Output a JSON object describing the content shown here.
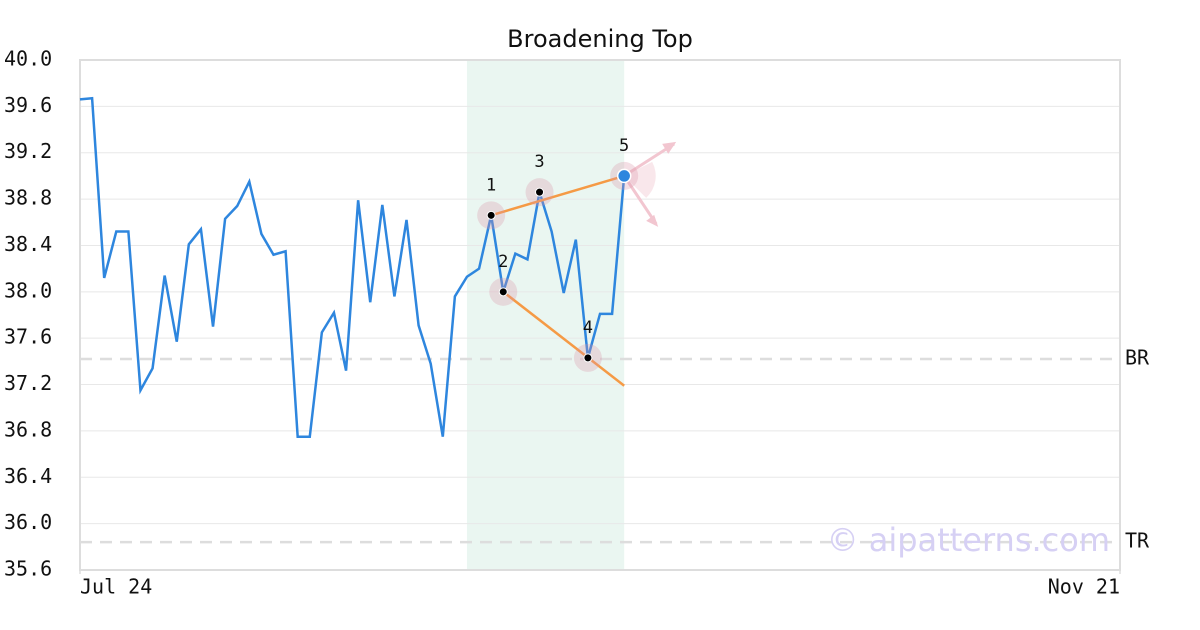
{
  "chart_data": {
    "type": "line",
    "title": "Broadening Top",
    "x": [
      0,
      1,
      2,
      3,
      4,
      5,
      6,
      7,
      8,
      9,
      10,
      11,
      12,
      13,
      14,
      15,
      16,
      17,
      18,
      19,
      20,
      21,
      22,
      23,
      24,
      25,
      26,
      27,
      28,
      29,
      30,
      31,
      32,
      33,
      34,
      35,
      36,
      37,
      38,
      39,
      40,
      41,
      42,
      43,
      44,
      45
    ],
    "series": [
      {
        "color": "#2e86de",
        "values": [
          39.66,
          39.67,
          38.12,
          38.52,
          38.52,
          37.15,
          37.34,
          38.14,
          37.57,
          38.41,
          38.54,
          37.7,
          38.63,
          38.74,
          38.95,
          38.5,
          38.32,
          38.35,
          36.75,
          36.75,
          37.65,
          37.82,
          37.32,
          38.79,
          37.91,
          38.75,
          37.96,
          38.62,
          37.71,
          37.38,
          36.75,
          37.96,
          38.13,
          38.2,
          38.66,
          38.0,
          38.33,
          38.28,
          38.86,
          38.52,
          37.99,
          38.45,
          37.43,
          37.81,
          37.81,
          39.0
        ]
      }
    ],
    "xlim": [
      0,
      86
    ],
    "xticks": [
      {
        "value": 0,
        "label": "Jul 24"
      },
      {
        "value": 86,
        "label": "Nov 21"
      }
    ],
    "ylim": [
      35.6,
      40.0
    ],
    "yticks": [
      35.6,
      {
        "value": 36.0,
        "label": "36.0"
      },
      36.4,
      36.8,
      37.2,
      37.6,
      {
        "value": 38.0,
        "label": "38.0"
      },
      38.4,
      38.8,
      39.2,
      39.6,
      {
        "value": 40.0,
        "label": "40.0"
      }
    ],
    "grid": true,
    "highlight": {
      "x": [
        32,
        45
      ],
      "color": "#eaf6f1"
    },
    "pattern": {
      "color": "#f59a45",
      "points": [
        {
          "label": "1",
          "x": 34,
          "y": 38.66
        },
        {
          "label": "2",
          "x": 35,
          "y": 38.0
        },
        {
          "label": "3",
          "x": 38,
          "y": 38.86
        },
        {
          "label": "4",
          "x": 42,
          "y": 37.43
        },
        {
          "label": "5",
          "x": 45,
          "y": 39.0
        }
      ],
      "upper_line": {
        "x": [
          34,
          45
        ],
        "y": [
          38.66,
          39.0
        ]
      },
      "lower_line": {
        "x": [
          35,
          45
        ],
        "y": [
          38.0,
          37.19
        ]
      }
    },
    "levels": [
      {
        "label": "BR",
        "value": 37.42
      },
      {
        "label": "TR",
        "value": 35.84
      }
    ],
    "watermark": "© aipatterns.com"
  }
}
